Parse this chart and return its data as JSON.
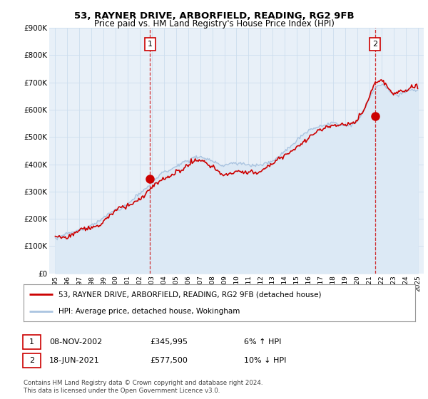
{
  "title": "53, RAYNER DRIVE, ARBORFIELD, READING, RG2 9FB",
  "subtitle": "Price paid vs. HM Land Registry's House Price Index (HPI)",
  "legend_line1": "53, RAYNER DRIVE, ARBORFIELD, READING, RG2 9FB (detached house)",
  "legend_line2": "HPI: Average price, detached house, Wokingham",
  "sale1_date": "08-NOV-2002",
  "sale1_price": "£345,995",
  "sale1_hpi": "6% ↑ HPI",
  "sale2_date": "18-JUN-2021",
  "sale2_price": "£577,500",
  "sale2_hpi": "10% ↓ HPI",
  "footer": "Contains HM Land Registry data © Crown copyright and database right 2024.\nThis data is licensed under the Open Government Licence v3.0.",
  "hpi_color": "#aac4e0",
  "hpi_fill_color": "#dce9f5",
  "price_color": "#cc0000",
  "sale1_x": 2002.85,
  "sale1_y": 345995,
  "sale2_x": 2021.46,
  "sale2_y": 577500,
  "ylim": [
    0,
    900000
  ],
  "xlim_min": 1994.5,
  "xlim_max": 2025.5,
  "yticks": [
    0,
    100000,
    200000,
    300000,
    400000,
    500000,
    600000,
    700000,
    800000,
    900000
  ],
  "ytick_labels": [
    "£0",
    "£100K",
    "£200K",
    "£300K",
    "£400K",
    "£500K",
    "£600K",
    "£700K",
    "£800K",
    "£900K"
  ],
  "xticks": [
    1995,
    1996,
    1997,
    1998,
    1999,
    2000,
    2001,
    2002,
    2003,
    2004,
    2005,
    2006,
    2007,
    2008,
    2009,
    2010,
    2011,
    2012,
    2013,
    2014,
    2015,
    2016,
    2017,
    2018,
    2019,
    2020,
    2021,
    2022,
    2023,
    2024,
    2025
  ],
  "background_color": "#ffffff",
  "grid_color": "#ccddee",
  "plot_bg_color": "#e8f0f8"
}
